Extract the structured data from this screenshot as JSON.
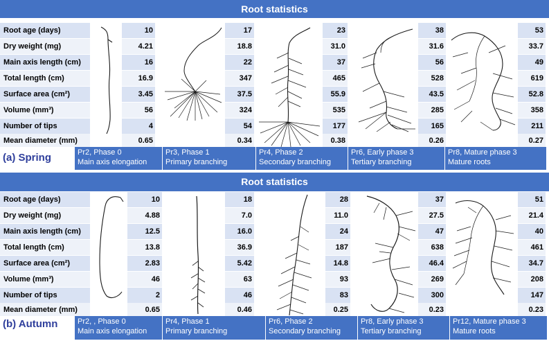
{
  "spring": {
    "title": "Root statistics",
    "season_label": "(a) Spring",
    "row_labels": [
      "Root age (days)",
      "Dry weight (mg)",
      "Main axis length (cm)",
      "Total length (cm)",
      "Surface area (cm²)",
      "Volume (mm³)",
      "Number of tips",
      "Mean diameter (mm)"
    ],
    "columns": [
      {
        "values": [
          "10",
          "4.21",
          "16",
          "16.9",
          "3.45",
          "56",
          "4",
          "0.65"
        ],
        "caption_line1": "Pr2, Phase 0",
        "caption_line2": "Main axis elongation"
      },
      {
        "values": [
          "17",
          "18.8",
          "22",
          "347",
          "37.5",
          "324",
          "54",
          "0.34"
        ],
        "caption_line1": "Pr3, Phase 1",
        "caption_line2": "Primary branching"
      },
      {
        "values": [
          "23",
          "31.0",
          "37",
          "465",
          "55.9",
          "535",
          "177",
          "0.38"
        ],
        "caption_line1": "Pr4, Phase 2",
        "caption_line2": "Secondary branching"
      },
      {
        "values": [
          "38",
          "31.6",
          "56",
          "528",
          "43.5",
          "285",
          "165",
          "0.26"
        ],
        "caption_line1": "Pr6, Early phase 3",
        "caption_line2": "Tertiary branching"
      },
      {
        "values": [
          "53",
          "33.7",
          "49",
          "619",
          "52.8",
          "358",
          "211",
          "0.27"
        ],
        "caption_line1": "Pr8, Mature phase 3",
        "caption_line2": "Mature roots"
      }
    ]
  },
  "autumn": {
    "title": "Root statistics",
    "season_label": "(b) Autumn",
    "row_labels": [
      "Root age (days)",
      "Dry weight (mg)",
      "Main axis length (cm)",
      "Total length (cm)",
      "Surface area (cm²)",
      "Volume (mm³)",
      "Number of tips",
      "Mean diameter (mm)"
    ],
    "columns": [
      {
        "values": [
          "10",
          "4.88",
          "12.5",
          "13.8",
          "2.83",
          "46",
          "2",
          "0.65"
        ],
        "caption_line1": "Pr2, , Phase 0",
        "caption_line2": "Main axis elongation"
      },
      {
        "values": [
          "18",
          "7.0",
          "16.0",
          "36.9",
          "5.42",
          "63",
          "46",
          "0.46"
        ],
        "caption_line1": "Pr4, Phase 1",
        "caption_line2": "Primary branching"
      },
      {
        "values": [
          "28",
          "11.0",
          "24",
          "187",
          "14.8",
          "93",
          "83",
          "0.25"
        ],
        "caption_line1": "Pr6, Phase 2",
        "caption_line2": "Secondary branching"
      },
      {
        "values": [
          "37",
          "27.5",
          "47",
          "638",
          "46.4",
          "269",
          "300",
          "0.23"
        ],
        "caption_line1": "Pr8, Early phase 3",
        "caption_line2": "Tertiary branching"
      },
      {
        "values": [
          "51",
          "21.4",
          "40",
          "461",
          "34.7",
          "208",
          "147",
          "0.23"
        ],
        "caption_line1": "Pr12, Mature phase 3",
        "caption_line2": "Mature roots"
      }
    ]
  },
  "colors": {
    "header_blue": "#4472c4",
    "row_shade": "#d9e2f3",
    "season_text": "#2f3f9c",
    "root_ink": "#1a1a1a"
  }
}
